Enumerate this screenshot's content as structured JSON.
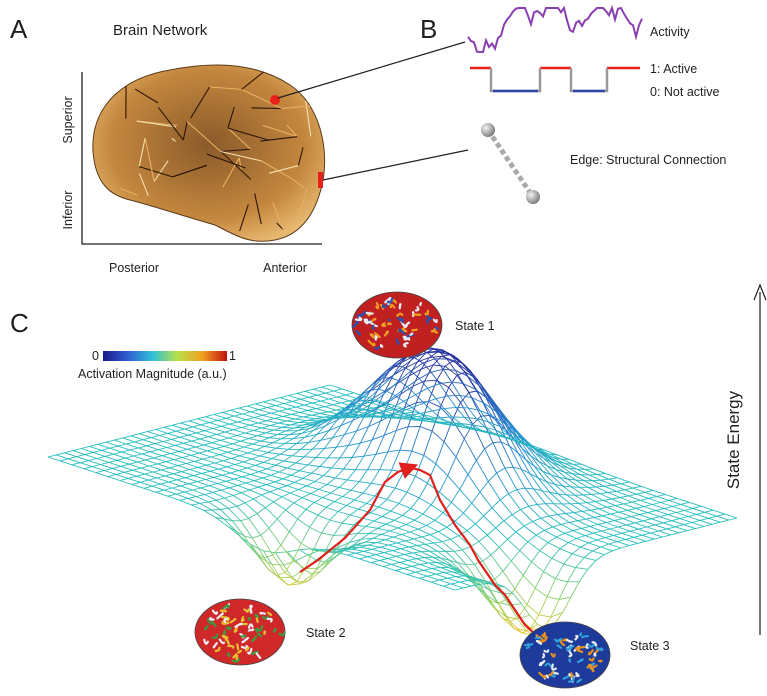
{
  "panels": {
    "a": {
      "label": "A",
      "title": "Brain Network",
      "axes": {
        "superior": "Superior",
        "inferior": "Inferior",
        "posterior": "Posterior",
        "anterior": "Anterior"
      }
    },
    "b": {
      "label": "B",
      "activity": "Activity",
      "active": "1: Active",
      "inactive": "0: Not active",
      "edge": "Edge: Structural Connection"
    },
    "c": {
      "label": "C",
      "colorbar": {
        "min": 0,
        "max": 1,
        "title": "Activation Magnitude (a.u.)"
      },
      "states": [
        "State 1",
        "State 2",
        "State 3"
      ],
      "energy": "State Energy"
    }
  }
}
